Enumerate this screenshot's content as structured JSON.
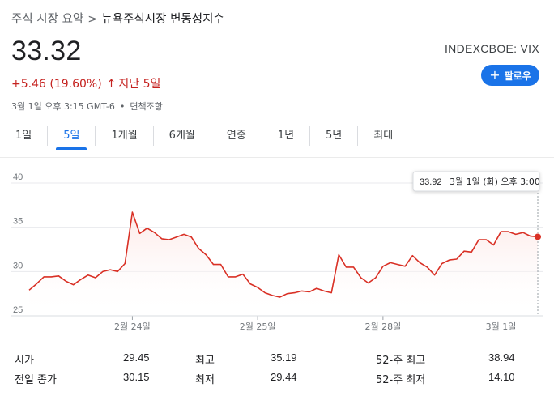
{
  "breadcrumb": {
    "root": "주식 시장 요약",
    "separator": ">",
    "current": "뉴욕주식시장 변동성지수"
  },
  "quote": {
    "price": "33.32",
    "ticker": "INDEXCBOE: VIX",
    "change": "+5.46 (19.60%)",
    "change_arrow": "↑",
    "change_period": "지난 5일",
    "timestamp": "3월 1일 오후 3:15 GMT-6",
    "dot": "•",
    "disclaimer": "면책조항"
  },
  "follow_button": {
    "icon": "plus-icon",
    "label": "팔로우"
  },
  "tabs": [
    {
      "label": "1일",
      "active": false
    },
    {
      "label": "5일",
      "active": true
    },
    {
      "label": "1개월",
      "active": false
    },
    {
      "label": "6개월",
      "active": false
    },
    {
      "label": "연중",
      "active": false
    },
    {
      "label": "1년",
      "active": false
    },
    {
      "label": "5년",
      "active": false
    },
    {
      "label": "최대",
      "active": false
    }
  ],
  "chart_data": {
    "type": "area",
    "y_ticks": [
      "40",
      "35",
      "30",
      "25"
    ],
    "y_tick_values": [
      40,
      35,
      30,
      25
    ],
    "ylim": [
      25,
      40
    ],
    "x_ticks": [
      "2월 24일",
      "2월 25일",
      "2월 28일",
      "3월 1일"
    ],
    "x_tick_index": [
      14,
      31,
      48,
      64
    ],
    "series": [
      {
        "values": [
          27.9,
          28.6,
          29.4,
          29.4,
          29.5,
          28.9,
          28.5,
          29.1,
          29.6,
          29.3,
          30.0,
          30.2,
          30.0,
          30.9,
          36.7,
          34.3,
          34.9,
          34.4,
          33.7,
          33.6,
          33.9,
          34.2,
          33.9,
          32.6,
          31.9,
          30.8,
          30.8,
          29.4,
          29.4,
          29.7,
          28.6,
          28.2,
          27.6,
          27.3,
          27.1,
          27.5,
          27.6,
          27.8,
          27.7,
          28.1,
          27.8,
          27.6,
          31.9,
          30.5,
          30.5,
          29.3,
          28.7,
          29.3,
          30.6,
          31.0,
          30.8,
          30.6,
          31.8,
          31.0,
          30.5,
          29.6,
          30.9,
          31.3,
          31.4,
          32.3,
          32.2,
          33.6,
          33.6,
          33.0,
          34.5,
          34.5,
          34.2,
          34.4,
          34.0,
          33.92
        ]
      }
    ],
    "line_color": "#d93025",
    "fill_color": "#fce8e6",
    "tooltip": {
      "value": "33.92",
      "label": "3월 1일 (화) 오후 3:00"
    }
  },
  "stats": [
    {
      "label": "시가",
      "value": "29.45"
    },
    {
      "label": "최고",
      "value": "35.19"
    },
    {
      "label": "52-주 최고",
      "value": "38.94"
    },
    {
      "label": "전일 종가",
      "value": "30.15"
    },
    {
      "label": "최저",
      "value": "29.44"
    },
    {
      "label": "52-주 최저",
      "value": "14.10"
    }
  ]
}
